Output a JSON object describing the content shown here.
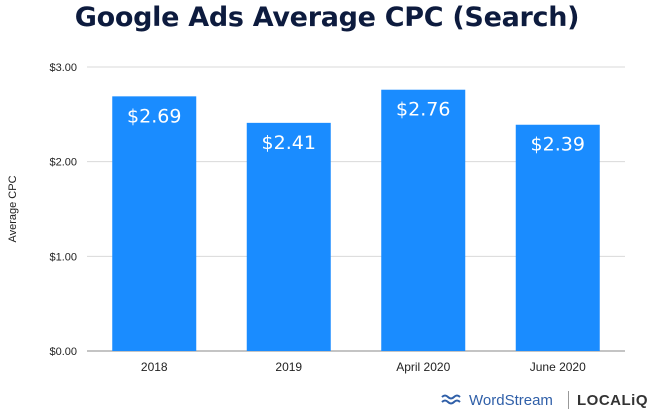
{
  "chart_data": {
    "type": "bar",
    "title": "Google Ads Average CPC (Search)",
    "ylabel": "Average CPC",
    "xlabel": "",
    "categories": [
      "2018",
      "2019",
      "April 2020",
      "June 2020"
    ],
    "values": [
      2.69,
      2.41,
      2.76,
      2.39
    ],
    "data_labels": [
      "$2.69",
      "$2.41",
      "$2.76",
      "$2.39"
    ],
    "ylim": [
      0,
      3
    ],
    "yticks": [
      {
        "value": 0,
        "label": "$0.00"
      },
      {
        "value": 1,
        "label": "$1.00"
      },
      {
        "value": 2,
        "label": "$2.00"
      },
      {
        "value": 3,
        "label": "$3.00"
      }
    ],
    "grid": true,
    "bar_color": "#1a8cff",
    "grid_color": "#d9d9d9"
  },
  "branding": {
    "wordstream": "WordStream",
    "localiq": "LOCALiQ"
  }
}
